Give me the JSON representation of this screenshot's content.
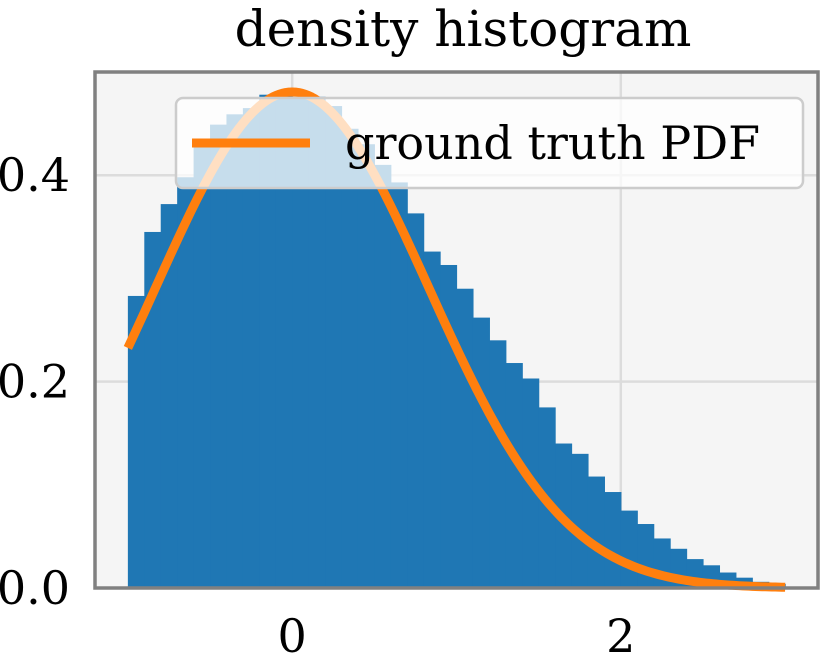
{
  "chart_data": {
    "type": "bar",
    "title": "density histogram",
    "xlabel": "",
    "ylabel": "",
    "xlim": [
      -1.2,
      3.2
    ],
    "ylim": [
      0,
      0.5
    ],
    "xticks": [
      0,
      2
    ],
    "xtick_labels": [
      "0",
      "2"
    ],
    "yticks": [
      0.0,
      0.2,
      0.4
    ],
    "ytick_labels": [
      "0.0",
      "0.2",
      "0.4"
    ],
    "grid": true,
    "legend_position": "top-right",
    "colors": {
      "bars": "#1f77b4",
      "pdf": "#ff7f0e",
      "plot_bg": "#f5f5f5",
      "grid": "#dcdcdc",
      "spine": "#808080"
    },
    "histogram": {
      "bin_edges": [
        -1.0,
        -0.9,
        -0.8,
        -0.7,
        -0.6,
        -0.5,
        -0.4,
        -0.3,
        -0.2,
        -0.1,
        0.0,
        0.1,
        0.2,
        0.3,
        0.4,
        0.5,
        0.6,
        0.7,
        0.8,
        0.9,
        1.0,
        1.1,
        1.2,
        1.3,
        1.4,
        1.5,
        1.6,
        1.7,
        1.8,
        1.9,
        2.0,
        2.1,
        2.2,
        2.3,
        2.4,
        2.5,
        2.6,
        2.7,
        2.8,
        2.9,
        3.0
      ],
      "densities": [
        0.283,
        0.345,
        0.372,
        0.398,
        0.43,
        0.449,
        0.459,
        0.465,
        0.478,
        0.478,
        0.474,
        0.476,
        0.467,
        0.445,
        0.43,
        0.41,
        0.393,
        0.363,
        0.326,
        0.313,
        0.29,
        0.262,
        0.24,
        0.218,
        0.203,
        0.175,
        0.14,
        0.13,
        0.108,
        0.093,
        0.075,
        0.062,
        0.048,
        0.038,
        0.028,
        0.022,
        0.015,
        0.01,
        0.006,
        0.004
      ]
    },
    "series": [
      {
        "name": "ground truth PDF",
        "type": "line",
        "mu": 0.0,
        "sigma": 0.83,
        "x_min": -1.0,
        "x_max": 3.0
      }
    ]
  }
}
